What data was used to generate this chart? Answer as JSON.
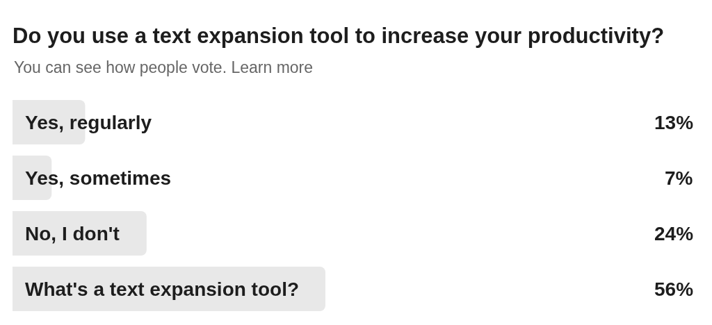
{
  "chart_data": {
    "type": "bar",
    "orientation": "horizontal",
    "title": "Do you use a text expansion tool to increase your productivity?",
    "subtitle": "You can see how people vote. Learn more",
    "categories": [
      "Yes, regularly",
      "Yes, sometimes",
      "No, I don't",
      "What's a text expansion tool?"
    ],
    "values": [
      13,
      7,
      24,
      56
    ],
    "value_labels": [
      "13%",
      "7%",
      "24%",
      "56%"
    ],
    "color": "#e8e8e8"
  }
}
